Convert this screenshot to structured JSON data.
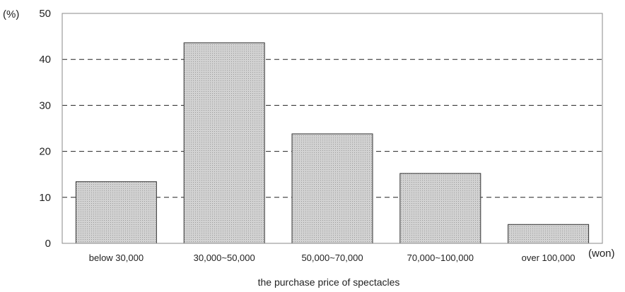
{
  "chart_data": {
    "type": "bar",
    "categories": [
      "below 30,000",
      "30,000~50,000",
      "50,000~70,000",
      "70,000~100,000",
      "over 100,000"
    ],
    "values": [
      13.4,
      43.6,
      23.8,
      15.2,
      4.1
    ],
    "xlabel": "the purchase price of spectacles",
    "x_unit": "(won)",
    "y_unit": "(%)",
    "ylim": [
      0,
      50
    ],
    "yticks": [
      0,
      10,
      20,
      30,
      40,
      50
    ],
    "grid": "dashed horizontal",
    "colors": {
      "bar_fill": "#c8c8c8",
      "bar_stroke": "#333333",
      "grid": "#222222",
      "frame": "#888888"
    }
  }
}
